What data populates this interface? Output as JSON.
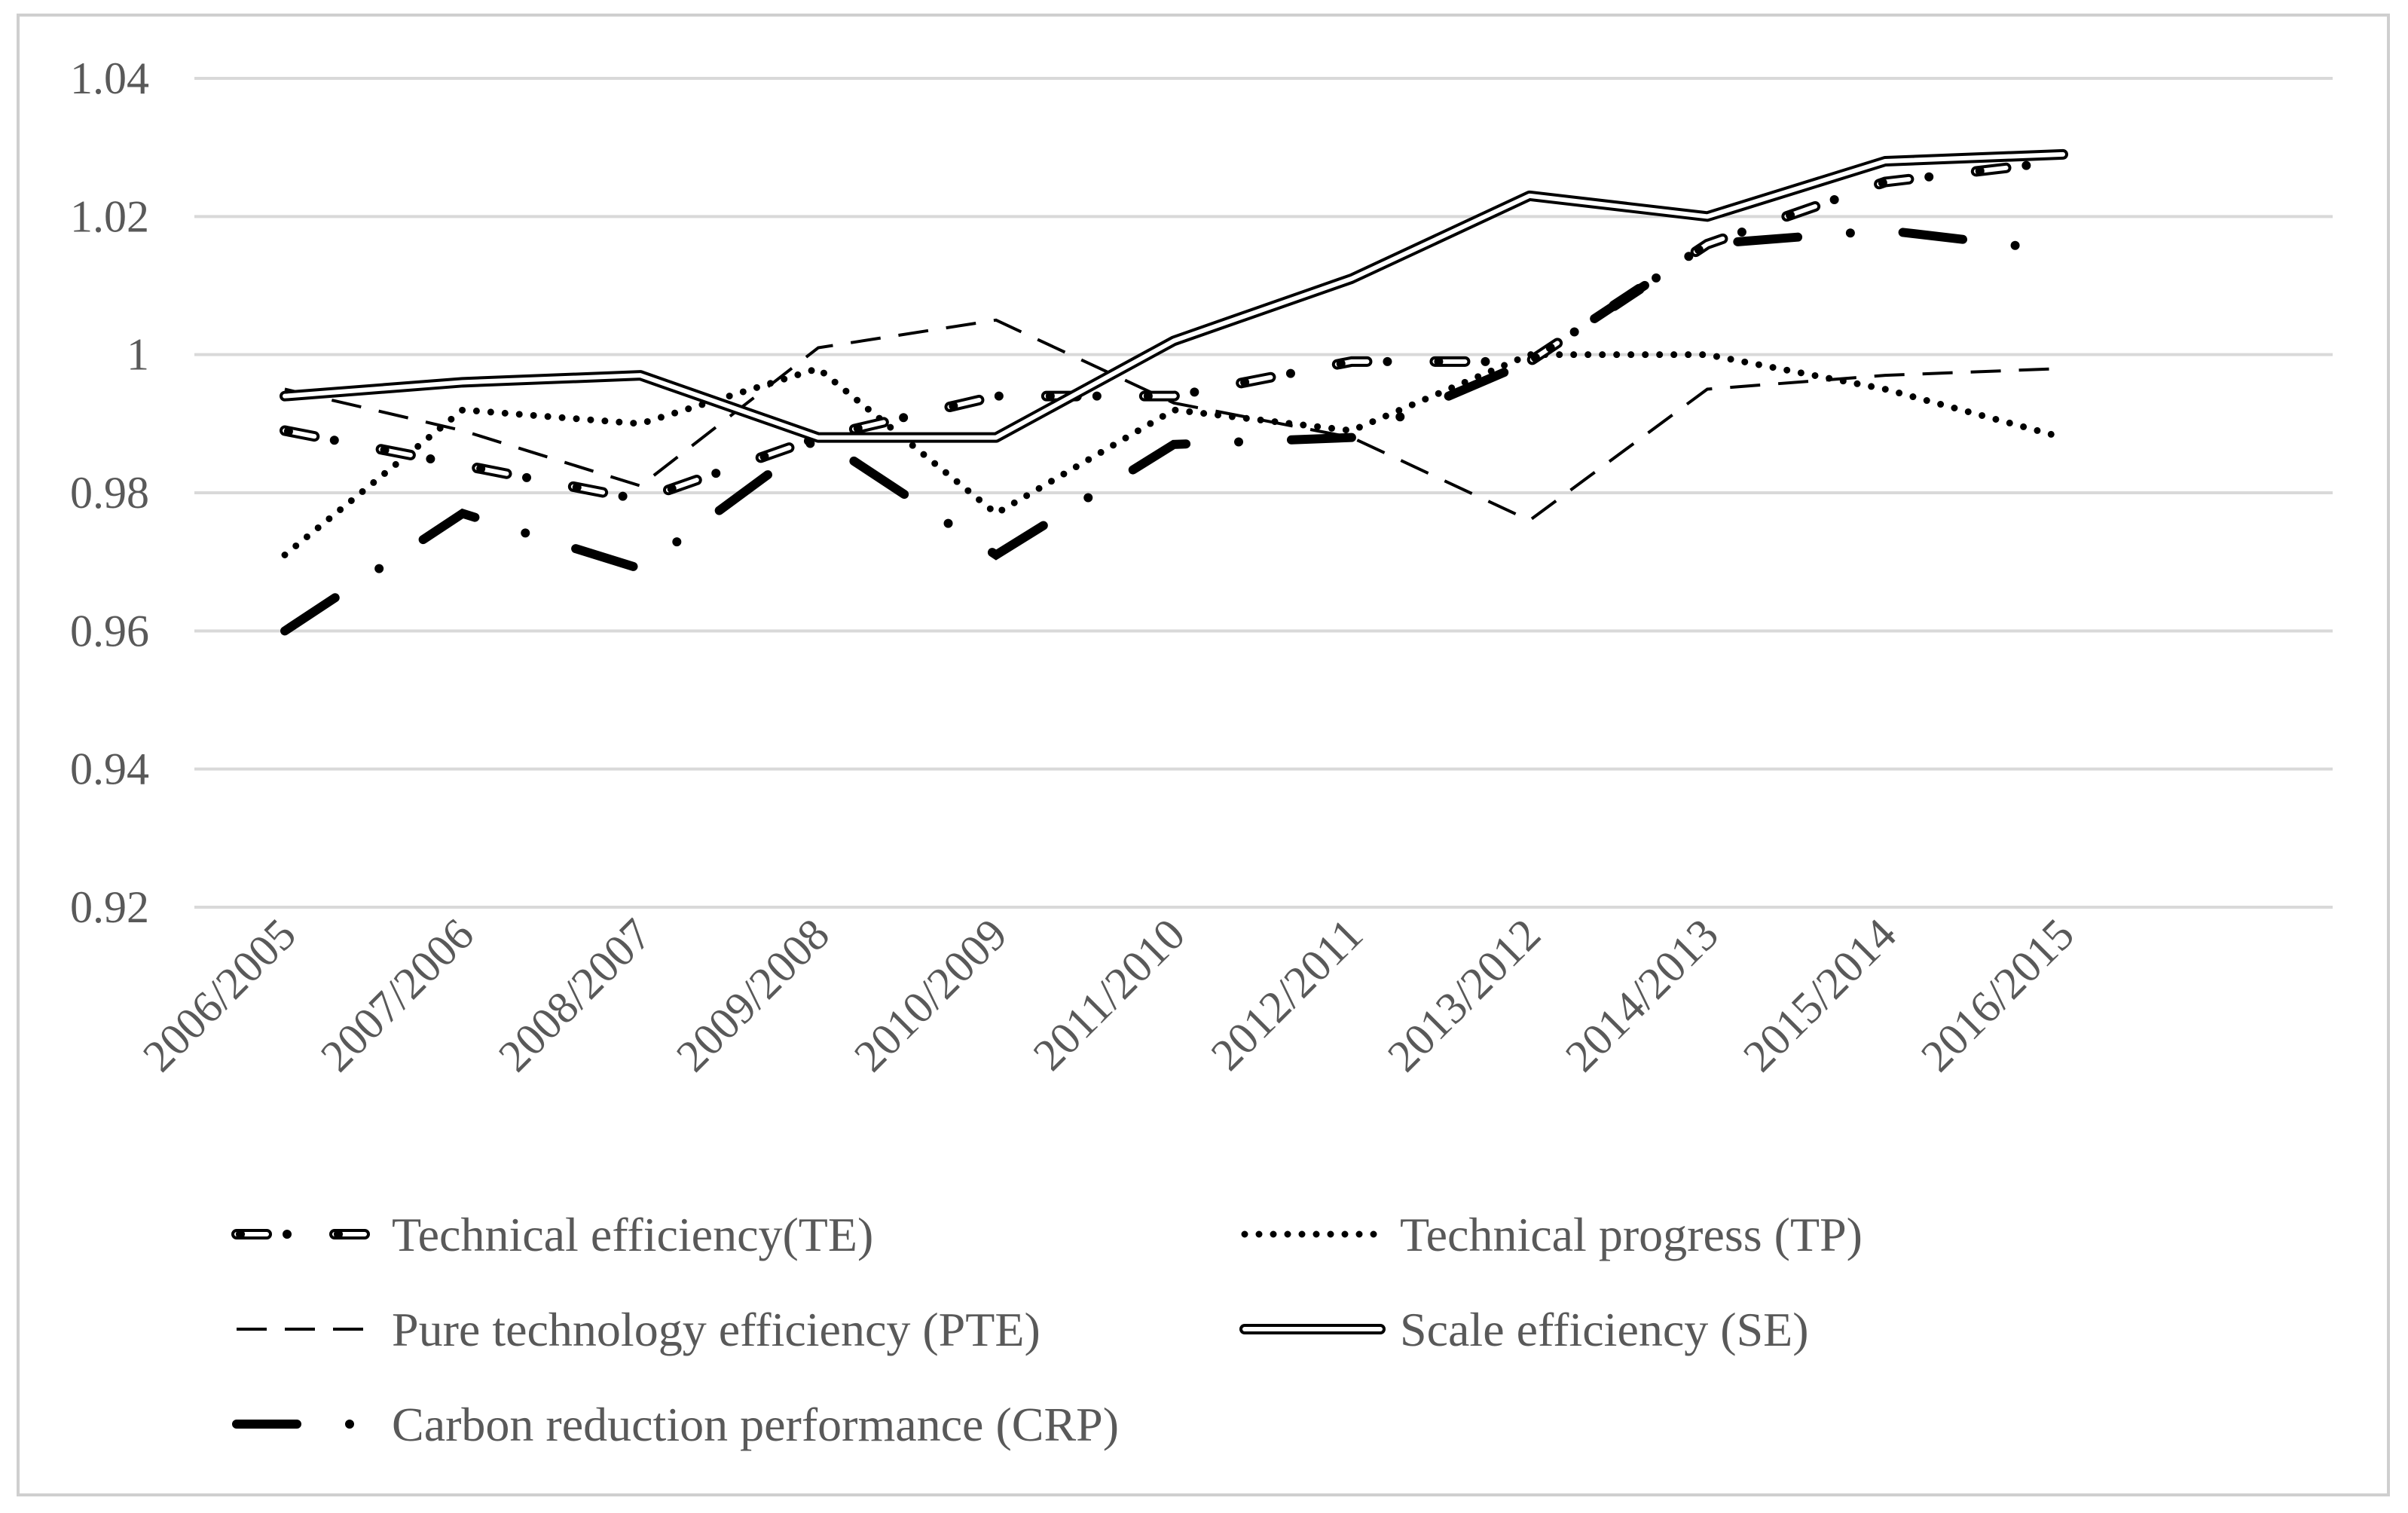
{
  "chart_data": {
    "type": "line",
    "title": "",
    "xlabel": "",
    "ylabel": "",
    "ylim": [
      0.92,
      1.04
    ],
    "yticks": [
      "0.92",
      "0.94",
      "0.96",
      "0.98",
      "1",
      "1.02",
      "1.04"
    ],
    "grid": true,
    "legend_position": "bottom",
    "categories": [
      "2006/2005",
      "2007/2006",
      "2008/2007",
      "2009/2008",
      "2010/2009",
      "2011/2010",
      "2012/2011",
      "2013/2012",
      "2014/2013",
      "2015/2014",
      "2016/2015"
    ],
    "series": [
      {
        "name": "Technical efficiency(TE)",
        "style": "double-dash-dot",
        "values": [
          0.989,
          0.984,
          0.979,
          0.988,
          0.994,
          0.994,
          0.999,
          0.999,
          1.016,
          1.025,
          1.028
        ]
      },
      {
        "name": "Technical progress (TP)",
        "style": "dotted",
        "values": [
          0.971,
          0.992,
          0.99,
          0.998,
          0.977,
          0.992,
          0.989,
          1.0,
          1.0,
          0.995,
          0.988
        ]
      },
      {
        "name": "Pure technology efficiency (PTE)",
        "style": "dashed",
        "values": [
          0.995,
          0.989,
          0.981,
          1.001,
          1.005,
          0.993,
          0.988,
          0.976,
          0.995,
          0.997,
          0.998
        ]
      },
      {
        "name": "Scale efficiency (SE)",
        "style": "double",
        "values": [
          0.994,
          0.996,
          0.997,
          0.988,
          0.988,
          1.002,
          1.011,
          1.023,
          1.02,
          1.028,
          1.029
        ]
      },
      {
        "name": "Carbon reduction performance (CRP)",
        "style": "long-dash-dot",
        "values": [
          0.96,
          0.977,
          0.969,
          0.988,
          0.971,
          0.987,
          0.988,
          0.999,
          1.016,
          1.018,
          1.015
        ]
      }
    ],
    "colors": {
      "line": "#000000",
      "grid": "#d9d9d9",
      "text": "#595959",
      "border": "#cfcfcf"
    }
  }
}
